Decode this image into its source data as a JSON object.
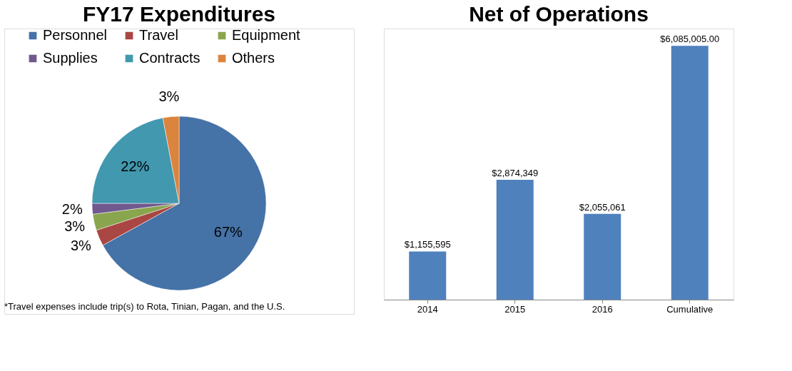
{
  "chart_data": [
    {
      "type": "pie",
      "title": "FY17 Expenditures",
      "categories": [
        "Personnel",
        "Travel",
        "Equipment",
        "Supplies",
        "Contracts",
        "Others"
      ],
      "values": [
        67,
        3,
        3,
        2,
        22,
        3
      ],
      "colors": [
        "#4572a7",
        "#aa4643",
        "#89a54e",
        "#71588f",
        "#4198af",
        "#db843d"
      ],
      "value_labels": [
        "67%",
        "3%",
        "3%",
        "2%",
        "22%",
        "3%"
      ],
      "legend": "top",
      "annotations": [
        "*Travel expenses include trip(s) to Rota, Tinian, Pagan, and the U.S."
      ]
    },
    {
      "type": "bar",
      "title": "Net of Operations",
      "categories": [
        "2014",
        "2015",
        "2016",
        "Cumulative"
      ],
      "values": [
        1155595,
        2874349,
        2055061,
        6085005
      ],
      "color": "#4f81bd",
      "value_labels": [
        "$1,155,595",
        "$2,874,349",
        "$2,055,061",
        "$6,085,005.00"
      ]
    }
  ]
}
